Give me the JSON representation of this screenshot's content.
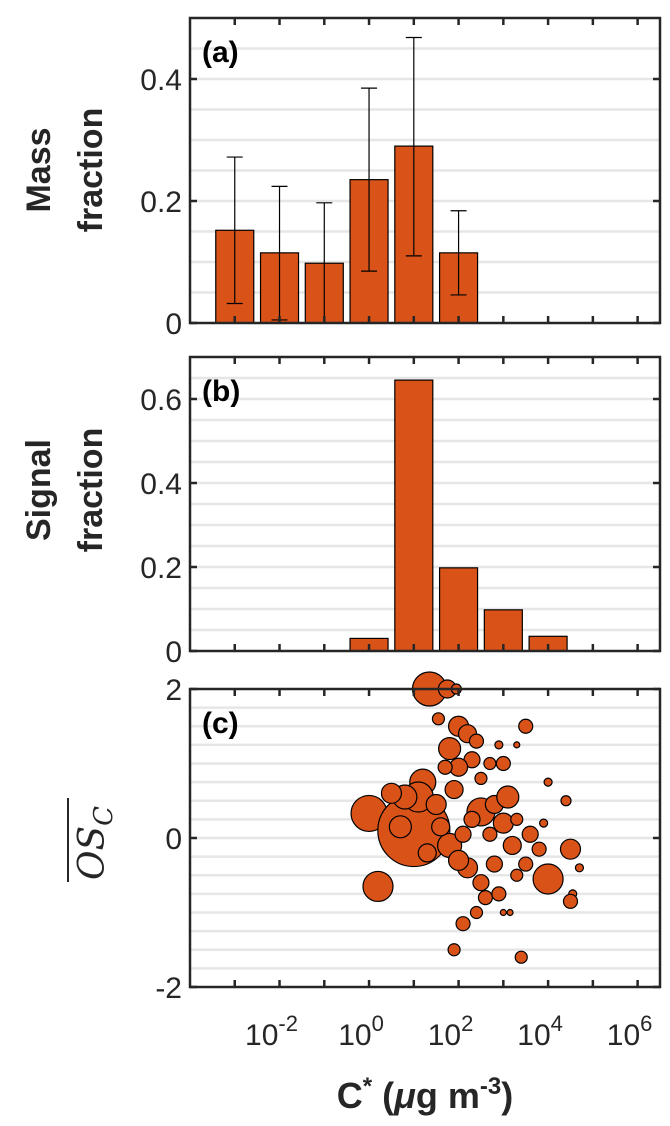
{
  "colors": {
    "bar": "#d95319",
    "edge": "#262626",
    "grid": "#e6e6e6",
    "marker": "#d95319"
  },
  "xaxis": {
    "label_main": "C",
    "label_sup": "*",
    "label_unit_open": " (",
    "label_mu": "μ",
    "label_unit": "g m",
    "label_exp": "-3",
    "label_close": ")",
    "scale": "log",
    "range_log10": [
      -4,
      6.5
    ],
    "ticklabels": [
      {
        "base": "10",
        "exp": "-2",
        "log10": -2
      },
      {
        "base": "10",
        "exp": "0",
        "log10": 0
      },
      {
        "base": "10",
        "exp": "2",
        "log10": 2
      },
      {
        "base": "10",
        "exp": "4",
        "log10": 4
      },
      {
        "base": "10",
        "exp": "6",
        "log10": 6
      }
    ]
  },
  "chart_data": [
    {
      "panel": "(a)",
      "type": "bar",
      "ylabel_line1": "Mass",
      "ylabel_line2": "fraction",
      "ylim": [
        0,
        0.5
      ],
      "yticks": [
        {
          "v": 0,
          "label": "0"
        },
        {
          "v": 0.2,
          "label": "0.2"
        },
        {
          "v": 0.4,
          "label": "0.4"
        }
      ],
      "x_log10": [
        -3,
        -2,
        -1,
        0,
        1,
        2
      ],
      "values": [
        0.152,
        0.115,
        0.098,
        0.235,
        0.29,
        0.115
      ],
      "err_low": [
        0.032,
        0.005,
        0.0,
        0.085,
        0.11,
        0.046
      ],
      "err_high": [
        0.272,
        0.224,
        0.197,
        0.385,
        0.468,
        0.184
      ]
    },
    {
      "panel": "(b)",
      "type": "bar",
      "ylabel_line1": "Signal",
      "ylabel_line2": "fraction",
      "ylim": [
        0,
        0.7
      ],
      "yticks": [
        {
          "v": 0,
          "label": "0"
        },
        {
          "v": 0.2,
          "label": "0.2"
        },
        {
          "v": 0.4,
          "label": "0.4"
        },
        {
          "v": 0.6,
          "label": "0.6"
        }
      ],
      "x_log10": [
        0,
        1,
        2,
        3,
        4
      ],
      "values": [
        0.03,
        0.645,
        0.198,
        0.098,
        0.035
      ]
    },
    {
      "panel": "(c)",
      "type": "scatter",
      "ylabel": "OS",
      "ylabel_sub": "C",
      "ylim": [
        -2,
        2
      ],
      "yticks": [
        {
          "v": -2,
          "label": "-2"
        },
        {
          "v": 0,
          "label": "0"
        },
        {
          "v": 2,
          "label": "2"
        }
      ],
      "points": [
        {
          "x": 1.35,
          "y": 2.0,
          "s": 17
        },
        {
          "x": 1.75,
          "y": 2.0,
          "s": 9
        },
        {
          "x": 1.95,
          "y": 2.0,
          "s": 5
        },
        {
          "x": 0.0,
          "y": 0.33,
          "s": 18
        },
        {
          "x": 1.0,
          "y": 0.1,
          "s": 36
        },
        {
          "x": 0.2,
          "y": -0.65,
          "s": 15
        },
        {
          "x": 1.55,
          "y": 1.6,
          "s": 6
        },
        {
          "x": 2.0,
          "y": 1.5,
          "s": 10
        },
        {
          "x": 2.2,
          "y": 1.4,
          "s": 9
        },
        {
          "x": 2.4,
          "y": 1.3,
          "s": 7
        },
        {
          "x": 1.8,
          "y": 1.2,
          "s": 11
        },
        {
          "x": 2.3,
          "y": 1.05,
          "s": 8
        },
        {
          "x": 2.7,
          "y": 1.0,
          "s": 6
        },
        {
          "x": 3.0,
          "y": 1.0,
          "s": 7
        },
        {
          "x": 2.9,
          "y": 1.25,
          "s": 4
        },
        {
          "x": 3.5,
          "y": 1.5,
          "s": 7
        },
        {
          "x": 3.3,
          "y": 1.25,
          "s": 3
        },
        {
          "x": 4.0,
          "y": 0.75,
          "s": 4
        },
        {
          "x": 4.4,
          "y": 0.5,
          "s": 5
        },
        {
          "x": 1.2,
          "y": 0.75,
          "s": 13
        },
        {
          "x": 1.1,
          "y": 0.55,
          "s": 15
        },
        {
          "x": 0.8,
          "y": 0.55,
          "s": 12
        },
        {
          "x": 0.5,
          "y": 0.6,
          "s": 10
        },
        {
          "x": 1.5,
          "y": 0.45,
          "s": 10
        },
        {
          "x": 1.9,
          "y": 0.65,
          "s": 9
        },
        {
          "x": 2.5,
          "y": 0.35,
          "s": 14
        },
        {
          "x": 2.8,
          "y": 0.45,
          "s": 9
        },
        {
          "x": 3.1,
          "y": 0.55,
          "s": 11
        },
        {
          "x": 3.0,
          "y": 0.2,
          "s": 10
        },
        {
          "x": 3.9,
          "y": 0.2,
          "s": 4
        },
        {
          "x": 3.6,
          "y": 0.05,
          "s": 8
        },
        {
          "x": 3.2,
          "y": -0.1,
          "s": 9
        },
        {
          "x": 3.8,
          "y": -0.15,
          "s": 7
        },
        {
          "x": 4.5,
          "y": -0.15,
          "s": 10
        },
        {
          "x": 4.0,
          "y": -0.55,
          "s": 15
        },
        {
          "x": 4.7,
          "y": -0.4,
          "s": 4
        },
        {
          "x": 4.55,
          "y": -0.75,
          "s": 4
        },
        {
          "x": 4.5,
          "y": -0.85,
          "s": 7
        },
        {
          "x": 2.2,
          "y": -0.4,
          "s": 10
        },
        {
          "x": 2.5,
          "y": -0.6,
          "s": 8
        },
        {
          "x": 2.6,
          "y": -0.8,
          "s": 7
        },
        {
          "x": 2.9,
          "y": -0.75,
          "s": 7
        },
        {
          "x": 3.3,
          "y": -0.5,
          "s": 6
        },
        {
          "x": 2.4,
          "y": -1.0,
          "s": 6
        },
        {
          "x": 2.1,
          "y": -1.15,
          "s": 7
        },
        {
          "x": 1.9,
          "y": -1.5,
          "s": 6
        },
        {
          "x": 3.4,
          "y": -1.6,
          "s": 6
        },
        {
          "x": 3.0,
          "y": -1.0,
          "s": 3
        },
        {
          "x": 3.15,
          "y": -1.0,
          "s": 3
        },
        {
          "x": 1.8,
          "y": -0.1,
          "s": 12
        },
        {
          "x": 2.0,
          "y": -0.3,
          "s": 10
        },
        {
          "x": 1.6,
          "y": 0.15,
          "s": 9
        },
        {
          "x": 2.1,
          "y": 0.05,
          "s": 8
        },
        {
          "x": 2.7,
          "y": 0.05,
          "s": 7
        },
        {
          "x": 2.3,
          "y": 0.25,
          "s": 8
        },
        {
          "x": 1.3,
          "y": -0.2,
          "s": 9
        },
        {
          "x": 0.7,
          "y": 0.15,
          "s": 11
        },
        {
          "x": 2.8,
          "y": -0.35,
          "s": 8
        },
        {
          "x": 3.5,
          "y": -0.35,
          "s": 7
        },
        {
          "x": 2.0,
          "y": 0.95,
          "s": 9
        },
        {
          "x": 1.7,
          "y": 0.95,
          "s": 7
        },
        {
          "x": 2.5,
          "y": 0.8,
          "s": 6
        },
        {
          "x": 3.3,
          "y": 0.25,
          "s": 6
        }
      ]
    }
  ]
}
